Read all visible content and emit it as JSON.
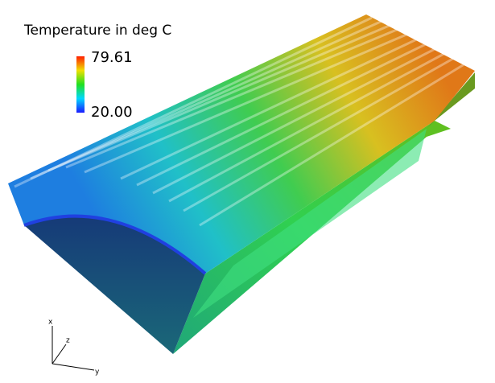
{
  "legend": {
    "title": "Temperature in deg C",
    "max": 79.61,
    "min": {
      "value": 20,
      "label": "20.00"
    }
  },
  "axes_triad": {
    "x": "x",
    "y": "y",
    "z": "z"
  }
}
